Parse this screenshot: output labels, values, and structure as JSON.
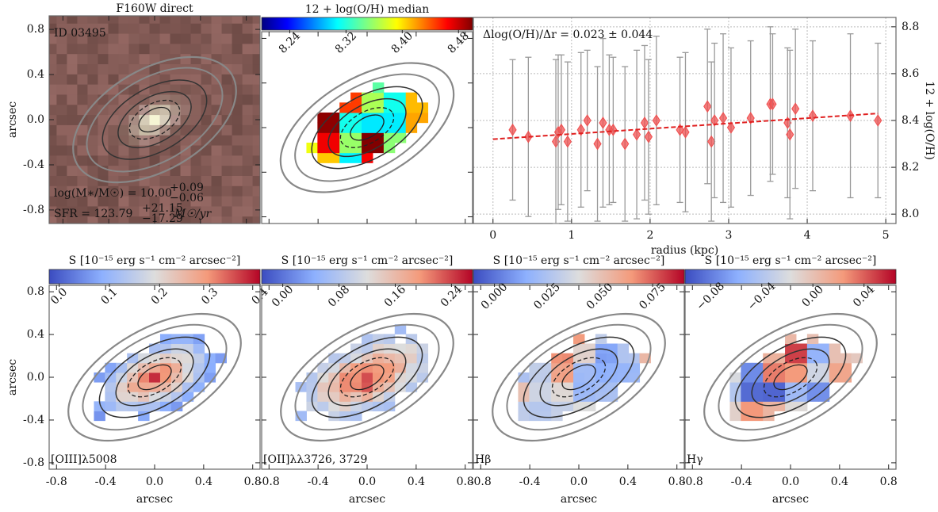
{
  "chart_data": [
    {
      "type": "image",
      "map": "direct",
      "title": "F160W direct",
      "annotation": "ID 03495",
      "mass_text": "log(M∗/M☉) = 10.00",
      "mass_up": "+0.09",
      "mass_low": "−0.06",
      "sfr_text": "SFR = 123.79",
      "sfr_up": "+21.15",
      "sfr_low": "−17.29",
      "sfr_unit": "M☉/yr",
      "ylabel": "arcsec",
      "xlim": [
        -0.92,
        0.92
      ],
      "ylim": [
        -0.92,
        0.92
      ],
      "xticks": [
        -0.8,
        -0.4,
        {
          "value": 0,
          "label": "0.0"
        },
        0.4,
        0.8
      ],
      "yticks": [
        -0.8,
        -0.4,
        {
          "value": 0,
          "label": "0.0"
        },
        0.4,
        0.8
      ]
    },
    {
      "type": "image",
      "map": "metal",
      "xlim": [
        -0.86,
        0.86
      ],
      "ylim": [
        -0.86,
        0.86
      ],
      "xticks": [
        -0.8,
        -0.4,
        {
          "value": 0,
          "label": "0.0"
        },
        0.4,
        0.8
      ],
      "yticks": [
        -0.8,
        -0.4,
        {
          "value": 0,
          "label": "0.0"
        },
        0.4,
        0.8
      ],
      "colorbar": {
        "label": "12 + log(O/H) median",
        "cmap": "jet",
        "lim": [
          8.2,
          8.5
        ],
        "ticks": [
          8.24,
          8.32,
          {
            "value": 8.4,
            "label": "8.40"
          },
          8.48
        ]
      }
    },
    {
      "type": "scatter",
      "annotation": "Δlog(O/H)/Δr = 0.023 ± 0.044",
      "xlabel": "radius (kpc)",
      "ylabel": "12 + log(O/H)",
      "color": "#f05050",
      "grid": true,
      "xlim": [
        -0.25,
        5.13
      ],
      "ylim": [
        7.96,
        8.84
      ],
      "xticks": [
        0,
        1,
        2,
        3,
        4,
        5
      ],
      "yticks": [
        {
          "value": 8.0,
          "label": "8.0"
        },
        8.2,
        8.4,
        8.6,
        8.8
      ],
      "x": [
        0.25,
        0.45,
        0.8,
        0.83,
        0.87,
        0.95,
        1.12,
        1.2,
        1.33,
        1.4,
        1.48,
        1.53,
        1.68,
        1.83,
        1.93,
        1.98,
        2.08,
        2.38,
        2.45,
        2.73,
        2.78,
        2.82,
        2.93,
        3.03,
        3.28,
        3.53,
        3.56,
        3.75,
        3.78,
        3.85,
        4.07,
        4.55,
        4.9
      ],
      "y": [
        8.36,
        8.33,
        8.31,
        8.35,
        8.36,
        8.31,
        8.36,
        8.4,
        8.3,
        8.39,
        8.36,
        8.36,
        8.3,
        8.34,
        8.39,
        8.33,
        8.4,
        8.36,
        8.35,
        8.46,
        8.31,
        8.4,
        8.41,
        8.37,
        8.41,
        8.47,
        8.47,
        8.39,
        8.34,
        8.45,
        8.42,
        8.42,
        8.4
      ],
      "errors": [
        0.3,
        0.34,
        0.35,
        0.33,
        0.32,
        0.34,
        0.33,
        0.3,
        0.33,
        0.36,
        0.32,
        0.31,
        0.33,
        0.36,
        0.33,
        0.33,
        0.36,
        0.31,
        0.34,
        0.33,
        0.34,
        0.33,
        0.36,
        0.34,
        0.33,
        0.33,
        0.3,
        0.32,
        0.36,
        0.34,
        0.32,
        0.35,
        0.33
      ],
      "fit": {
        "x": [
          0,
          4.9
        ],
        "y": [
          8.32,
          8.43
        ]
      }
    },
    {
      "type": "image",
      "map": "oiii",
      "annotation": "[OIII]λ5008",
      "xlabel": "arcsec",
      "ylabel": "arcsec",
      "xlim": [
        -0.86,
        0.86
      ],
      "ylim": [
        -0.86,
        0.86
      ],
      "xticks": [
        -0.8,
        -0.4,
        {
          "value": 0,
          "label": "0.0"
        },
        0.4,
        0.8
      ],
      "yticks": [
        -0.8,
        -0.4,
        {
          "value": 0,
          "label": "0.0"
        },
        0.4,
        0.8
      ],
      "colorbar": {
        "label": "S [10⁻¹⁵ erg s⁻¹ cm⁻² arcsec⁻²]",
        "cmap": "coolwarm",
        "lim": [
          -0.02,
          0.4
        ],
        "ticks": [
          {
            "value": 0,
            "label": "0.0"
          },
          0.1,
          0.2,
          0.3,
          0.4
        ]
      }
    },
    {
      "type": "image",
      "map": "oii",
      "annotation": "[OII]λλ3726, 3729",
      "xlabel": "arcsec",
      "xlim": [
        -0.86,
        0.86
      ],
      "ylim": [
        -0.86,
        0.86
      ],
      "xticks": [
        -0.8,
        -0.4,
        {
          "value": 0,
          "label": "0.0"
        },
        0.4,
        0.8
      ],
      "yticks": [
        -0.8,
        -0.4,
        {
          "value": 0,
          "label": "0.0"
        },
        0.4,
        0.8
      ],
      "colorbar": {
        "label": "S [10⁻¹⁵ erg s⁻¹ cm⁻² arcsec⁻²]",
        "cmap": "coolwarm",
        "lim": [
          -0.03,
          0.27
        ],
        "ticks": [
          {
            "value": 0,
            "label": "0.00"
          },
          {
            "value": 0.08,
            "label": "0.08"
          },
          {
            "value": 0.16,
            "label": "0.16"
          },
          {
            "value": 0.24,
            "label": "0.24"
          }
        ]
      }
    },
    {
      "type": "image",
      "map": "hb",
      "annotation": "Hβ",
      "xlabel": "arcsec",
      "xlim": [
        -0.86,
        0.86
      ],
      "ylim": [
        -0.86,
        0.86
      ],
      "xticks": [
        -0.8,
        -0.4,
        {
          "value": 0,
          "label": "0.0"
        },
        0.4,
        0.8
      ],
      "yticks": [
        -0.8,
        -0.4,
        {
          "value": 0,
          "label": "0.0"
        },
        0.4,
        0.8
      ],
      "colorbar": {
        "label": "S [10⁻¹⁵ erg s⁻¹ cm⁻² arcsec⁻²]",
        "cmap": "coolwarm",
        "lim": [
          -0.01,
          0.09
        ],
        "ticks": [
          {
            "value": 0,
            "label": "0.000"
          },
          0.025,
          {
            "value": 0.05,
            "label": "0.050"
          },
          0.075
        ]
      }
    },
    {
      "type": "image",
      "map": "hg",
      "annotation": "Hγ",
      "xlabel": "arcsec",
      "xlim": [
        -0.86,
        0.86
      ],
      "ylim": [
        -0.86,
        0.86
      ],
      "xticks": [
        -0.8,
        -0.4,
        {
          "value": 0,
          "label": "0.0"
        },
        0.4,
        0.8
      ],
      "yticks": [
        -0.8,
        -0.4,
        {
          "value": 0,
          "label": "0.0"
        },
        0.4,
        0.8
      ],
      "colorbar": {
        "label": "S [10⁻¹⁵ erg s⁻¹ cm⁻² arcsec⁻²]",
        "cmap": "coolwarm",
        "lim": [
          -0.1,
          0.065
        ],
        "ticks": [
          {
            "value": -0.08,
            "label": "−0.08"
          },
          {
            "value": -0.04,
            "label": "−0.04"
          },
          {
            "value": 0,
            "label": "0.00"
          },
          0.04
        ]
      }
    }
  ]
}
